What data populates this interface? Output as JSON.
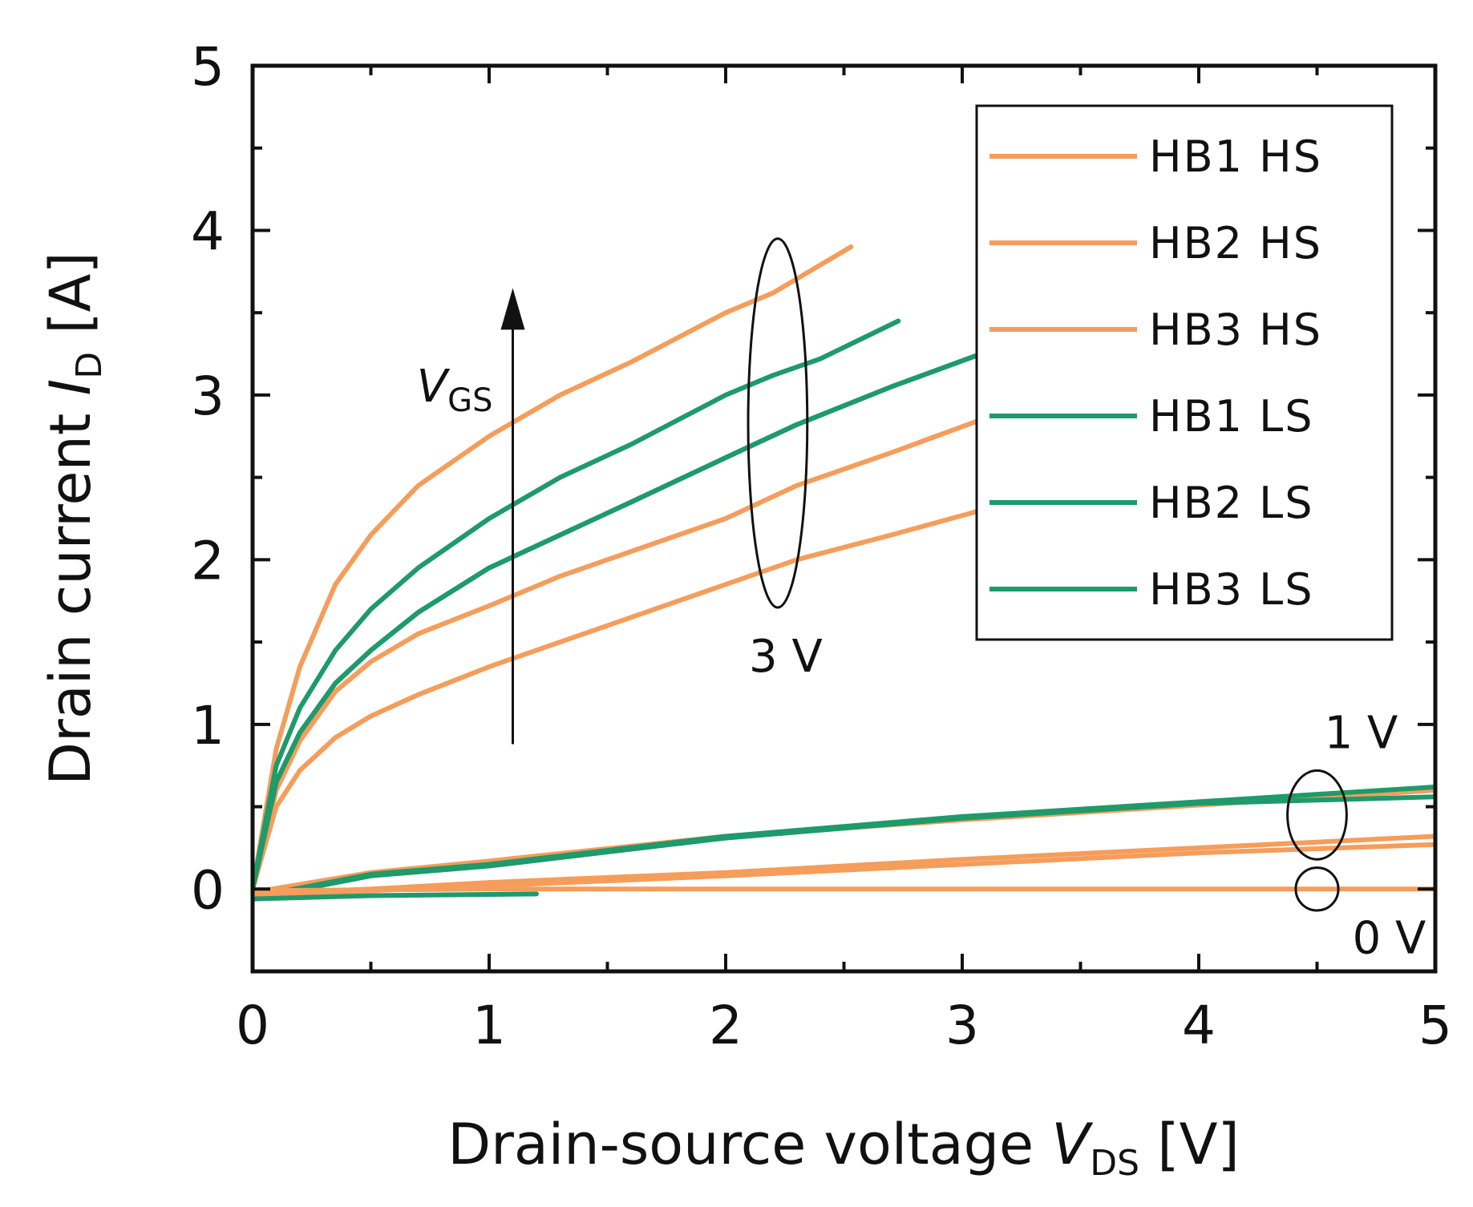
{
  "chart_data": {
    "type": "line",
    "title": "",
    "xlabel": {
      "prefix": "Drain-source voltage ",
      "var": "V",
      "sub": "DS",
      "unit": " [V]"
    },
    "ylabel": {
      "prefix": "Drain current ",
      "var": "I",
      "sub": "D",
      "unit": " [A]"
    },
    "xlim": [
      0,
      5
    ],
    "ylim": [
      -0.5,
      5
    ],
    "xticks": [
      0,
      1,
      2,
      3,
      4,
      5
    ],
    "xtick_labels": [
      "0",
      "1",
      "2",
      "3",
      "4",
      "5"
    ],
    "yticks": [
      0,
      1,
      2,
      3,
      4,
      5
    ],
    "ytick_labels": [
      "0",
      "1",
      "2",
      "3",
      "4",
      "5"
    ],
    "grid": false,
    "legend_position": "top-right",
    "colors": {
      "HS": "#f59d5b",
      "LS": "#1e9a6b",
      "axis": "#111111"
    },
    "series": [
      {
        "name": "HB1 HS",
        "vgs": "3 V",
        "color": "#f59d5b",
        "x": [
          0,
          0.1,
          0.2,
          0.35,
          0.5,
          0.7,
          1.0,
          1.3,
          1.6,
          2.0,
          2.2,
          2.53
        ],
        "y": [
          0,
          0.85,
          1.35,
          1.85,
          2.15,
          2.45,
          2.75,
          3.0,
          3.2,
          3.5,
          3.62,
          3.9
        ]
      },
      {
        "name": "HB2 HS",
        "vgs": "3 V",
        "color": "#f59d5b",
        "x": [
          0,
          0.1,
          0.2,
          0.35,
          0.5,
          0.7,
          1.0,
          1.3,
          1.6,
          2.0,
          2.3,
          2.7,
          3.08
        ],
        "y": [
          0,
          0.6,
          0.9,
          1.2,
          1.38,
          1.55,
          1.72,
          1.9,
          2.05,
          2.25,
          2.45,
          2.65,
          2.85
        ]
      },
      {
        "name": "HB3 HS",
        "vgs": "3 V",
        "color": "#f59d5b",
        "x": [
          0,
          0.1,
          0.2,
          0.35,
          0.5,
          0.7,
          1.0,
          1.3,
          1.6,
          2.0,
          2.3,
          2.7,
          3.08
        ],
        "y": [
          0,
          0.5,
          0.72,
          0.92,
          1.05,
          1.18,
          1.35,
          1.5,
          1.65,
          1.85,
          2.0,
          2.15,
          2.3
        ]
      },
      {
        "name": "HB1 LS",
        "vgs": "3 V",
        "color": "#1e9a6b",
        "x": [
          0,
          0.1,
          0.2,
          0.35,
          0.5,
          0.7,
          1.0,
          1.3,
          1.6,
          2.0,
          2.2,
          2.4,
          2.73
        ],
        "y": [
          0,
          0.75,
          1.1,
          1.45,
          1.7,
          1.95,
          2.25,
          2.5,
          2.7,
          3.0,
          3.12,
          3.22,
          3.45
        ]
      },
      {
        "name": "HB2 LS",
        "vgs": "3 V",
        "color": "#1e9a6b",
        "x": [
          0,
          0.1,
          0.2,
          0.35,
          0.5,
          0.7,
          1.0,
          1.3,
          1.6,
          2.0,
          2.3,
          2.7,
          3.08
        ],
        "y": [
          0,
          0.65,
          0.95,
          1.25,
          1.45,
          1.68,
          1.95,
          2.15,
          2.35,
          2.62,
          2.82,
          3.05,
          3.25
        ]
      },
      {
        "name": "HB3 LS",
        "vgs": "3 V",
        "color": "#1e9a6b",
        "x": [
          0,
          0.1,
          0.2,
          0.35,
          0.5,
          0.7,
          1.0,
          1.3,
          1.6,
          2.0,
          2.3,
          2.7,
          3.08
        ],
        "y": [
          0,
          0.65,
          0.95,
          1.25,
          1.45,
          1.68,
          1.95,
          2.15,
          2.35,
          2.62,
          2.82,
          3.05,
          3.25
        ]
      },
      {
        "name": "HB1 HS",
        "vgs": "1 V",
        "color": "#f59d5b",
        "x": [
          0,
          0.5,
          1.0,
          2.0,
          3.0,
          4.0,
          5.0
        ],
        "y": [
          -0.02,
          0.1,
          0.17,
          0.32,
          0.42,
          0.51,
          0.6
        ]
      },
      {
        "name": "HB1 LS",
        "vgs": "1 V",
        "color": "#1e9a6b",
        "x": [
          0,
          0.5,
          1.0,
          2.0,
          3.0,
          4.0,
          5.0
        ],
        "y": [
          -0.05,
          0.09,
          0.15,
          0.32,
          0.44,
          0.53,
          0.62
        ]
      },
      {
        "name": "HB2 LS",
        "vgs": "1 V",
        "color": "#1e9a6b",
        "x": [
          0,
          0.5,
          1.0,
          2.0,
          3.0,
          4.0,
          5.0
        ],
        "y": [
          -0.06,
          0.08,
          0.14,
          0.31,
          0.43,
          0.52,
          0.56
        ]
      },
      {
        "name": "HB2 HS",
        "vgs": "1 V",
        "color": "#f59d5b",
        "x": [
          0,
          0.5,
          1.0,
          2.0,
          3.0,
          4.0,
          5.0
        ],
        "y": [
          -0.03,
          0.0,
          0.04,
          0.1,
          0.18,
          0.25,
          0.32
        ]
      },
      {
        "name": "HB3 HS",
        "vgs": "1 V",
        "color": "#f59d5b",
        "x": [
          0,
          0.5,
          1.0,
          2.0,
          3.0,
          4.0,
          5.0
        ],
        "y": [
          -0.04,
          -0.01,
          0.02,
          0.08,
          0.15,
          0.22,
          0.27
        ]
      },
      {
        "name": "HB3 LS",
        "vgs": "0 V",
        "color": "#1e9a6b",
        "x": [
          0,
          0.5,
          1.2
        ],
        "y": [
          -0.06,
          -0.04,
          -0.03
        ]
      },
      {
        "name": "HB1 HS",
        "vgs": "0 V",
        "color": "#f59d5b",
        "x": [
          0,
          1.0,
          2.0,
          3.0,
          4.0,
          5.0
        ],
        "y": [
          -0.01,
          0.0,
          0.0,
          0.0,
          0.0,
          0.0
        ]
      }
    ],
    "legend": [
      {
        "label": "HB1 HS",
        "color": "#f59d5b"
      },
      {
        "label": "HB2 HS",
        "color": "#f59d5b"
      },
      {
        "label": "HB3 HS",
        "color": "#f59d5b"
      },
      {
        "label": "HB1 LS",
        "color": "#1e9a6b"
      },
      {
        "label": "HB2 LS",
        "color": "#1e9a6b"
      },
      {
        "label": "HB3 LS",
        "color": "#1e9a6b"
      }
    ],
    "annotations": {
      "vgs_arrow": {
        "var": "V",
        "sub": "GS",
        "x": 1.1,
        "y_from": 0.88,
        "y_to": 3.65
      },
      "vgs_3v": {
        "label": "3 V",
        "center": [
          2.22,
          2.83
        ],
        "radius_x": 0.25,
        "radius_y": 1.12
      },
      "vgs_1v": {
        "label": "1 V",
        "center": [
          4.5,
          0.45
        ],
        "radius_x": 0.25,
        "radius_y": 0.27
      },
      "vgs_0v": {
        "label": "0 V",
        "center": [
          4.5,
          0.0
        ],
        "radius_x": 0.18,
        "radius_y": 0.13
      }
    }
  }
}
